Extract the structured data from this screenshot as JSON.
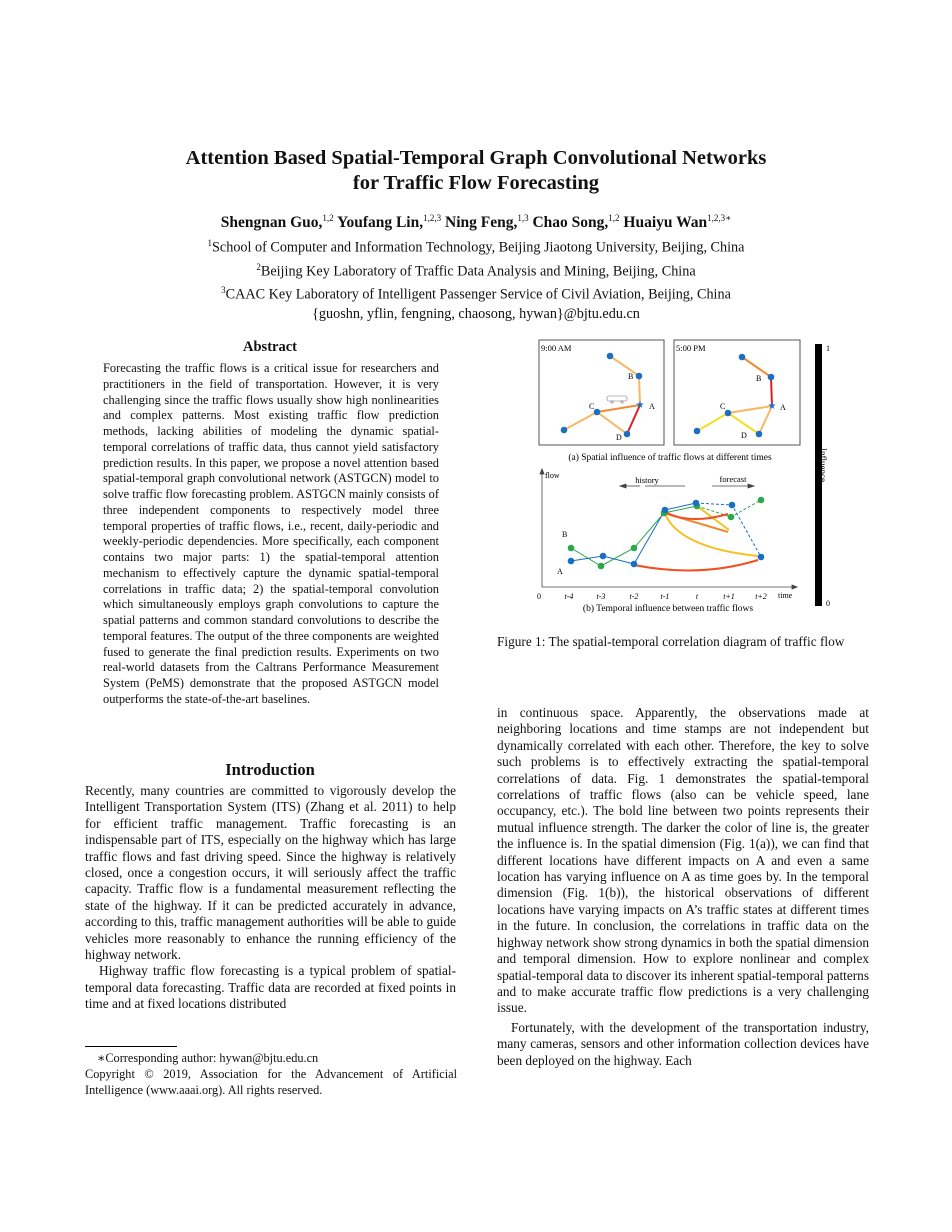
{
  "title": [
    "Attention Based Spatial-Temporal Graph Convolutional Networks",
    "for Traffic Flow Forecasting"
  ],
  "authors": [
    {
      "name": "Shengnan Guo,",
      "sup": "1,2"
    },
    {
      "name": "Youfang Lin,",
      "sup": "1,2,3"
    },
    {
      "name": "Ning Feng,",
      "sup": "1,3"
    },
    {
      "name": "Chao Song,",
      "sup": "1,2"
    },
    {
      "name": "Huaiyu Wan",
      "sup": "1,2,3∗"
    }
  ],
  "affiliations": [
    {
      "sup": "1",
      "text": "School of Computer and Information Technology, Beijing Jiaotong University, Beijing, China"
    },
    {
      "sup": "2",
      "text": "Beijing Key Laboratory of Traffic Data Analysis and Mining, Beijing, China"
    },
    {
      "sup": "3",
      "text": "CAAC Key Laboratory of Intelligent Passenger Service of Civil Aviation, Beijing, China"
    }
  ],
  "emails": "{guoshn, yflin, fengning, chaosong, hywan}@bjtu.edu.cn",
  "abstract": {
    "heading": "Abstract",
    "text": "Forecasting the traffic flows is a critical issue for researchers and practitioners in the field of transportation. However, it is very challenging since the traffic flows usually show high nonlinearities and complex patterns. Most existing traffic flow prediction methods, lacking abilities of modeling the dynamic spatial-temporal correlations of traffic data, thus cannot yield satisfactory prediction results. In this paper, we propose a novel attention based spatial-temporal graph convolutional network (ASTGCN) model to solve traffic flow forecasting problem. ASTGCN mainly consists of three independent components to respectively model three temporal properties of traffic flows, i.e., recent, daily-periodic and weekly-periodic dependencies. More specifically, each component contains two major parts: 1) the spatial-temporal attention mechanism to effectively capture the dynamic spatial-temporal correlations in traffic data; 2) the spatial-temporal convolution which simultaneously employs graph convolutions to capture the spatial patterns and common standard convolutions to describe the temporal features. The output of the three components are weighted fused to generate the final prediction results. Experiments on two real-world datasets from the Caltrans Performance Measurement System (PeMS) demonstrate that the proposed ASTGCN model outperforms the state-of-the-art baselines."
  },
  "introduction": {
    "heading": "Introduction",
    "paragraphs": [
      "Recently, many countries are committed to vigorously develop the Intelligent Transportation System (ITS) (Zhang et al. 2011) to help for efficient traffic management. Traffic forecasting is an indispensable part of ITS, especially on the highway which has large traffic flows and fast driving speed. Since the highway is relatively closed, once a congestion occurs, it will seriously affect the traffic capacity. Traffic flow is a fundamental measurement reflecting the state of the highway. If it can be predicted accurately in advance, according to this, traffic management authorities will be able to guide vehicles more reasonably to enhance the running efficiency of the highway network.",
      "Highway traffic flow forecasting is a typical problem of spatial-temporal data forecasting. Traffic data are recorded at fixed points in time and at fixed locations distributed"
    ]
  },
  "footnote": {
    "corresponding": "∗Corresponding author: hywan@bjtu.edu.cn",
    "copyright": "Copyright © 2019, Association for the Advancement of Artificial Intelligence (www.aaai.org). All rights reserved."
  },
  "figure": {
    "panel_a": {
      "left_time": "9:00 AM",
      "right_time": "5:00 PM",
      "caption": "(a) Spatial influence of traffic flows  at different times",
      "nodes": [
        "A",
        "B",
        "C",
        "D"
      ]
    },
    "panel_b": {
      "ylabel": "flow",
      "xlabel": "time",
      "origin": "0",
      "history": "history",
      "forecast": "forecast",
      "series_labels": [
        "A",
        "B"
      ],
      "ticks": [
        "t-4",
        "t-3",
        "t-2",
        "t-1",
        "t",
        "t+1",
        "t+2"
      ],
      "caption": "(b) Temporal influence between traffic flows"
    },
    "colorbar": {
      "label": "Influence",
      "max": "1",
      "min": "0"
    },
    "caption": "Figure 1: The spatial-temporal correlation diagram of traffic flow"
  },
  "right_text": [
    "in continuous space. Apparently, the observations made at neighboring locations and time stamps are not independent but dynamically correlated with each other. Therefore, the key to solve such problems is to effectively extracting the spatial-temporal correlations of data. Fig. 1 demonstrates the spatial-temporal correlations of traffic flows (also can be vehicle speed, lane occupancy, etc.). The bold line between two points represents their mutual influence strength. The darker the color of line is, the greater the influence is. In the spatial dimension (Fig. 1(a)), we can find that different locations have different impacts on A and even a same location has varying influence on A as time goes by. In the temporal dimension (Fig. 1(b)), the historical observations of different locations have varying impacts on A’s traffic states at different times in the future. In conclusion, the correlations in traffic data on the highway network show strong dynamics in both the spatial dimension and temporal dimension. How to explore nonlinear and complex spatial-temporal data to discover its inherent spatial-temporal patterns and to make accurate traffic flow predictions is a very challenging issue.",
    "Fortunately, with the development of the transportation industry, many cameras, sensors and other information collection devices have been deployed on the highway. Each"
  ]
}
